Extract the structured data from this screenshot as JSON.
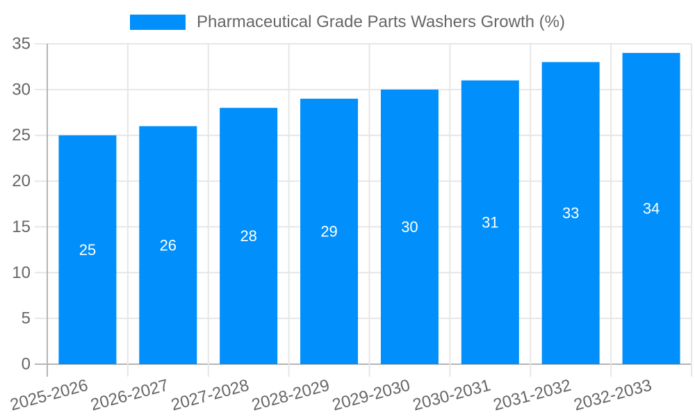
{
  "legend": {
    "label": "Pharmaceutical Grade Parts Washers Growth (%)"
  },
  "colors": {
    "bar": "#008FFB",
    "value_label": "#ffffff",
    "axis_label": "#666666",
    "legend_text": "#666666",
    "gridline": "#e6e6e6",
    "axis_line": "#b4b4b4",
    "background": "#ffffff"
  },
  "chart_data": {
    "type": "bar",
    "title": "Pharmaceutical Grade Parts Washers Growth (%)",
    "series_name": "Pharmaceutical Grade Parts Washers Growth (%)",
    "categories": [
      "2025-2026",
      "2026-2027",
      "2027-2028",
      "2028-2029",
      "2029-2030",
      "2030-2031",
      "2031-2032",
      "2032-2033"
    ],
    "values": [
      25,
      26,
      28,
      29,
      30,
      31,
      33,
      34
    ],
    "xlabel": "",
    "ylabel": "",
    "ylim": [
      0,
      35
    ],
    "yticks": [
      0,
      5,
      10,
      15,
      20,
      25,
      30,
      35
    ],
    "grid": true,
    "legend_position": "top",
    "bar_value_labels": true,
    "x_label_rotation": -15
  }
}
